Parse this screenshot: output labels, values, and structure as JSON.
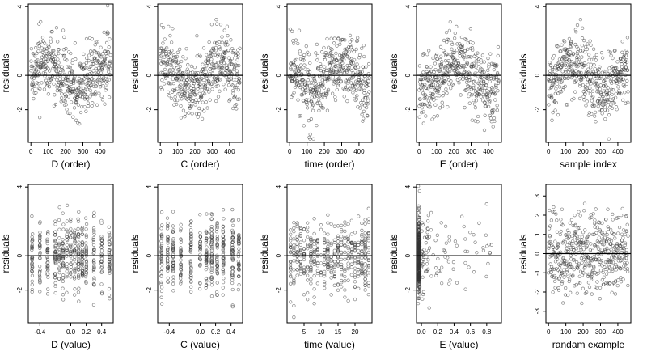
{
  "colors": {
    "point": "#333333",
    "reference_line": "#000000",
    "frame": "#000000",
    "background": "#ffffff"
  },
  "chart_data": [
    {
      "type": "scatter",
      "xlabel": "D (order)",
      "ylabel": "residuals",
      "xlim": [
        -15,
        475
      ],
      "ylim": [
        -3.9,
        4.15
      ],
      "xticks": [
        0,
        100,
        200,
        300,
        400
      ],
      "xtick_labels": [
        "0",
        "100",
        "200",
        "300",
        "400"
      ],
      "yticks": [
        -2,
        0,
        4
      ],
      "ytick_labels": [
        "-2",
        "0",
        "4"
      ],
      "reference_line_y": 0,
      "n_points": 460,
      "x_pattern": "index",
      "y_pattern": "index-wave-0"
    },
    {
      "type": "scatter",
      "xlabel": "C (order)",
      "ylabel": "residuals",
      "xlim": [
        -15,
        475
      ],
      "ylim": [
        -3.9,
        4.15
      ],
      "xticks": [
        0,
        100,
        200,
        300,
        400
      ],
      "xtick_labels": [
        "0",
        "100",
        "200",
        "300",
        "400"
      ],
      "yticks": [
        -2,
        0,
        4
      ],
      "ytick_labels": [
        "-2",
        "0",
        "4"
      ],
      "reference_line_y": 0,
      "n_points": 460,
      "x_pattern": "index",
      "y_pattern": "index-wave-1"
    },
    {
      "type": "scatter",
      "xlabel": "time (order)",
      "ylabel": "residuals",
      "xlim": [
        -15,
        475
      ],
      "ylim": [
        -3.9,
        4.15
      ],
      "xticks": [
        0,
        100,
        200,
        300,
        400
      ],
      "xtick_labels": [
        "0",
        "100",
        "200",
        "300",
        "400"
      ],
      "yticks": [
        -2,
        0,
        4
      ],
      "ytick_labels": [
        "-2",
        "0",
        "4"
      ],
      "reference_line_y": 0,
      "n_points": 460,
      "x_pattern": "index",
      "y_pattern": "index-wave-2"
    },
    {
      "type": "scatter",
      "xlabel": "E (order)",
      "ylabel": "residuals",
      "xlim": [
        -15,
        475
      ],
      "ylim": [
        -3.9,
        4.15
      ],
      "xticks": [
        0,
        100,
        200,
        300,
        400
      ],
      "xtick_labels": [
        "0",
        "100",
        "200",
        "300",
        "400"
      ],
      "yticks": [
        -2,
        0,
        4
      ],
      "ytick_labels": [
        "-2",
        "0",
        "4"
      ],
      "reference_line_y": 0,
      "n_points": 460,
      "x_pattern": "index",
      "y_pattern": "index-wave-3"
    },
    {
      "type": "scatter",
      "xlabel": "sample index",
      "ylabel": "residuals",
      "xlim": [
        -15,
        475
      ],
      "ylim": [
        -3.9,
        4.15
      ],
      "xticks": [
        0,
        100,
        200,
        300,
        400
      ],
      "xtick_labels": [
        "0",
        "100",
        "200",
        "300",
        "400"
      ],
      "yticks": [
        -2,
        0,
        4
      ],
      "ytick_labels": [
        "-2",
        "0",
        "4"
      ],
      "reference_line_y": 0,
      "n_points": 460,
      "x_pattern": "index",
      "y_pattern": "index-wave-4"
    },
    {
      "type": "scatter",
      "xlabel": "D (value)",
      "ylabel": "residuals",
      "xlim": [
        -0.55,
        0.55
      ],
      "ylim": [
        -3.9,
        4.15
      ],
      "xticks": [
        -0.4,
        0.0,
        0.2,
        0.4
      ],
      "xtick_labels": [
        "-0.4",
        "0.0",
        "0.2",
        "0.4"
      ],
      "yticks": [
        -2,
        0,
        4
      ],
      "ytick_labels": [
        "-2",
        "0",
        "4"
      ],
      "reference_line_y": 0,
      "n_points": 460,
      "x_pattern": "discrete-D",
      "y_pattern": "noise"
    },
    {
      "type": "scatter",
      "xlabel": "C (value)",
      "ylabel": "residuals",
      "xlim": [
        -0.55,
        0.55
      ],
      "ylim": [
        -3.9,
        4.15
      ],
      "xticks": [
        -0.4,
        0.0,
        0.2,
        0.4
      ],
      "xtick_labels": [
        "-0.4",
        "0.0",
        "0.2",
        "0.4"
      ],
      "yticks": [
        -2,
        0,
        4
      ],
      "ytick_labels": [
        "-2",
        "0",
        "4"
      ],
      "reference_line_y": 0,
      "n_points": 460,
      "x_pattern": "discrete-C",
      "y_pattern": "noise"
    },
    {
      "type": "scatter",
      "xlabel": "time (value)",
      "ylabel": "residuals",
      "xlim": [
        0,
        25
      ],
      "ylim": [
        -3.9,
        4.15
      ],
      "xticks": [
        5,
        10,
        15,
        20
      ],
      "xtick_labels": [
        "5",
        "10",
        "15",
        "20"
      ],
      "yticks": [
        -2,
        0,
        4
      ],
      "ytick_labels": [
        "-2",
        "0",
        "4"
      ],
      "reference_line_y": 0,
      "n_points": 460,
      "x_pattern": "discrete-time",
      "y_pattern": "noise"
    },
    {
      "type": "scatter",
      "xlabel": "E (value)",
      "ylabel": "residuals",
      "xlim": [
        -0.06,
        0.98
      ],
      "ylim": [
        -3.9,
        4.15
      ],
      "xticks": [
        0.0,
        0.2,
        0.4,
        0.6,
        0.8
      ],
      "xtick_labels": [
        "0.0",
        "0.2",
        "0.4",
        "0.6",
        "0.8"
      ],
      "yticks": [
        -2,
        0,
        4
      ],
      "ytick_labels": [
        "-2",
        "0",
        "4"
      ],
      "reference_line_y": 0,
      "n_points": 460,
      "x_pattern": "skewed-E",
      "y_pattern": "noise"
    },
    {
      "type": "scatter",
      "xlabel": "randam example",
      "ylabel": "residuals",
      "xlim": [
        -15,
        475
      ],
      "ylim": [
        -3.6,
        3.6
      ],
      "xticks": [
        0,
        100,
        200,
        300,
        400
      ],
      "xtick_labels": [
        "0",
        "100",
        "200",
        "300",
        "400"
      ],
      "yticks": [
        -3,
        -2,
        -1,
        0,
        1,
        2,
        3
      ],
      "ytick_labels": [
        "-3",
        "-2",
        "-1",
        "0",
        "1",
        "2",
        "3"
      ],
      "reference_line_y": 0,
      "n_points": 460,
      "x_pattern": "index",
      "y_pattern": "noise"
    }
  ]
}
